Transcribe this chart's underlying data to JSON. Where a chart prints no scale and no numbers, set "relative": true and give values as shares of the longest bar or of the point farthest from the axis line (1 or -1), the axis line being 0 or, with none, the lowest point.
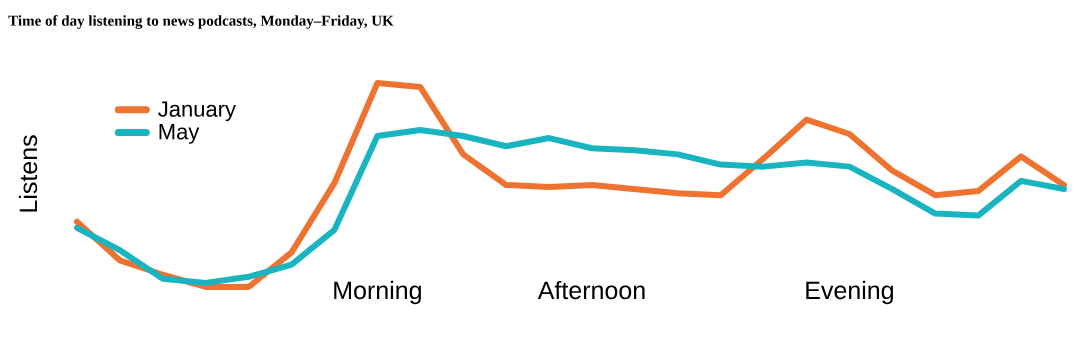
{
  "chart_data": {
    "type": "line",
    "title": "Time of day listening to news podcasts, Monday–Friday, UK",
    "ylabel": "Listens",
    "relative": true,
    "categories": [
      null,
      null,
      null,
      null,
      null,
      null,
      null,
      "Morning",
      null,
      null,
      null,
      null,
      "Afternoon",
      null,
      null,
      null,
      null,
      null,
      "Evening",
      null,
      null,
      null,
      null,
      null
    ],
    "legend": "top left",
    "series": [
      {
        "name": "January",
        "color": "#ee7330",
        "values": [
          0.32,
          0.13,
          0.06,
          0,
          0,
          0.17,
          0.51,
          1,
          0.98,
          0.65,
          0.5,
          0.49,
          0.5,
          0.48,
          0.46,
          0.45,
          0.63,
          0.82,
          0.75,
          0.57,
          0.45,
          0.47,
          0.64,
          0.5
        ]
      },
      {
        "name": "May",
        "color": "#18b4c0",
        "values": [
          0.29,
          0.18,
          0.04,
          0.02,
          0.05,
          0.11,
          0.28,
          0.74,
          0.77,
          0.74,
          0.69,
          0.73,
          0.68,
          0.67,
          0.65,
          0.6,
          0.59,
          0.61,
          0.59,
          0.48,
          0.36,
          0.35,
          0.52,
          0.48
        ]
      }
    ]
  }
}
